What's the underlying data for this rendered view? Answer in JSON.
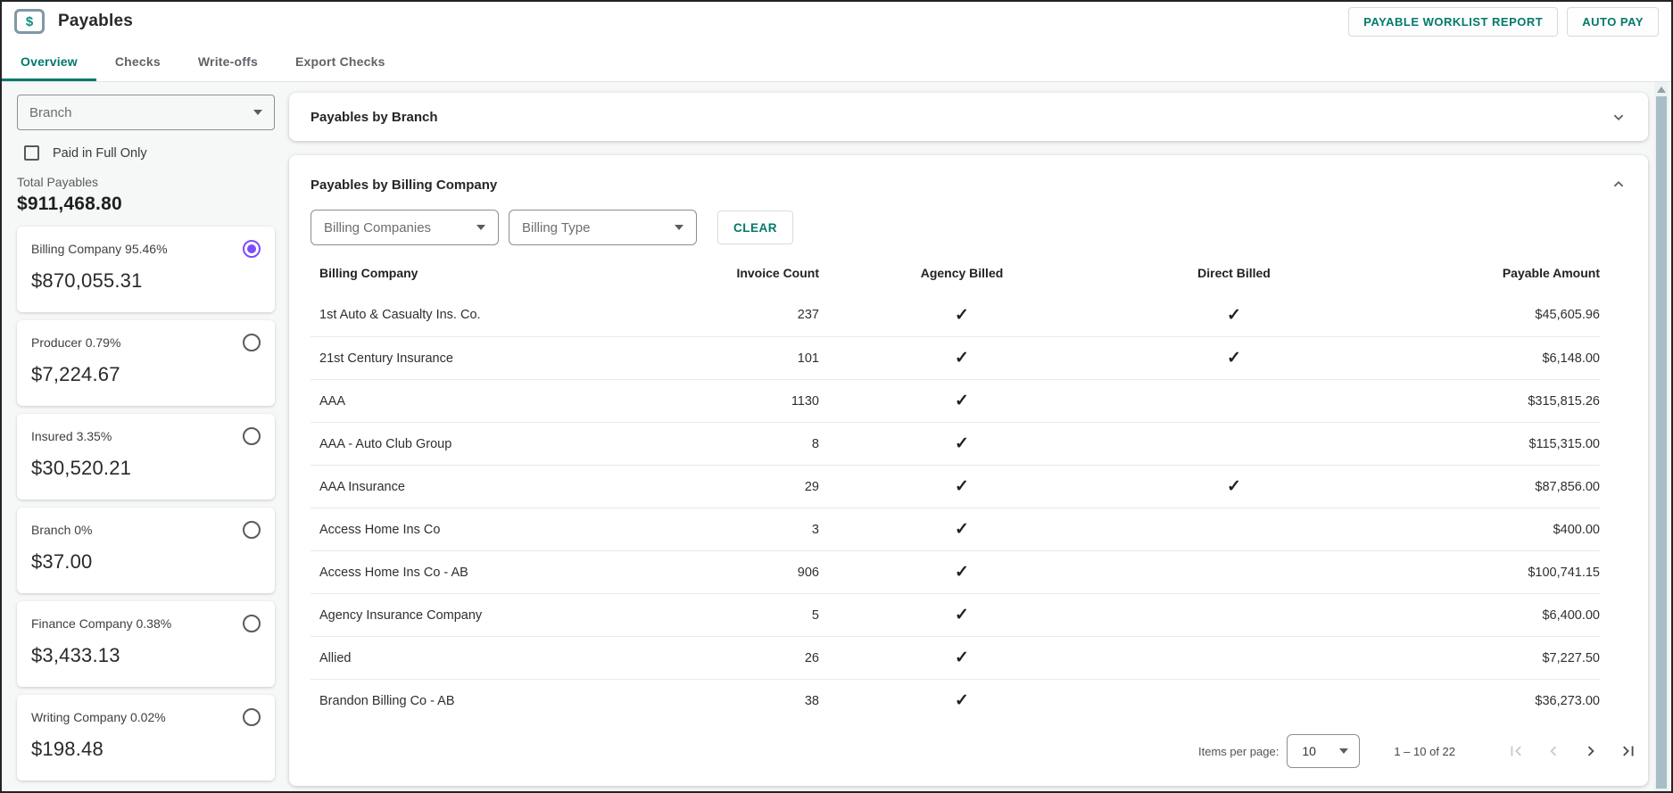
{
  "header": {
    "title": "Payables",
    "buttons": [
      {
        "label": "PAYABLE WORKLIST REPORT"
      },
      {
        "label": "AUTO PAY"
      }
    ]
  },
  "tabs": [
    {
      "label": "Overview",
      "active": true
    },
    {
      "label": "Checks",
      "active": false
    },
    {
      "label": "Write-offs",
      "active": false
    },
    {
      "label": "Export Checks",
      "active": false
    }
  ],
  "sidebar": {
    "branch_filter_placeholder": "Branch",
    "paid_in_full_label": "Paid in Full Only",
    "paid_in_full_checked": false,
    "total_label": "Total Payables",
    "total_amount": "$911,468.80",
    "categories": [
      {
        "label": "Billing Company 95.46%",
        "amount": "$870,055.31",
        "selected": true
      },
      {
        "label": "Producer 0.79%",
        "amount": "$7,224.67",
        "selected": false
      },
      {
        "label": "Insured 3.35%",
        "amount": "$30,520.21",
        "selected": false
      },
      {
        "label": "Branch 0%",
        "amount": "$37.00",
        "selected": false
      },
      {
        "label": "Finance Company 0.38%",
        "amount": "$3,433.13",
        "selected": false
      },
      {
        "label": "Writing Company 0.02%",
        "amount": "$198.48",
        "selected": false
      }
    ]
  },
  "main": {
    "branch_panel": {
      "title": "Payables by Branch",
      "collapsed": true
    },
    "billing_panel": {
      "title": "Payables by Billing Company",
      "collapsed": false,
      "filters": {
        "billing_companies_placeholder": "Billing Companies",
        "billing_type_placeholder": "Billing Type",
        "clear_label": "CLEAR"
      },
      "table": {
        "columns": [
          "Billing Company",
          "Invoice Count",
          "Agency Billed",
          "Direct Billed",
          "Payable Amount"
        ],
        "rows": [
          {
            "company": "1st Auto & Casualty Ins. Co.",
            "invoices": "237",
            "agency": true,
            "direct": true,
            "amount": "$45,605.96"
          },
          {
            "company": "21st Century Insurance",
            "invoices": "101",
            "agency": true,
            "direct": true,
            "amount": "$6,148.00"
          },
          {
            "company": "AAA",
            "invoices": "1130",
            "agency": true,
            "direct": false,
            "amount": "$315,815.26"
          },
          {
            "company": "AAA - Auto Club Group",
            "invoices": "8",
            "agency": true,
            "direct": false,
            "amount": "$115,315.00"
          },
          {
            "company": "AAA Insurance",
            "invoices": "29",
            "agency": true,
            "direct": true,
            "amount": "$87,856.00"
          },
          {
            "company": "Access Home Ins Co",
            "invoices": "3",
            "agency": true,
            "direct": false,
            "amount": "$400.00"
          },
          {
            "company": "Access Home Ins Co - AB",
            "invoices": "906",
            "agency": true,
            "direct": false,
            "amount": "$100,741.15"
          },
          {
            "company": "Agency Insurance Company",
            "invoices": "5",
            "agency": true,
            "direct": false,
            "amount": "$6,400.00"
          },
          {
            "company": "Allied",
            "invoices": "26",
            "agency": true,
            "direct": false,
            "amount": "$7,227.50"
          },
          {
            "company": "Brandon Billing Co - AB",
            "invoices": "38",
            "agency": true,
            "direct": false,
            "amount": "$36,273.00"
          }
        ]
      },
      "pagination": {
        "items_per_page_label": "Items per page:",
        "items_per_page_value": "10",
        "range_label": "1 – 10 of 22"
      }
    }
  },
  "glyphs": {
    "check": "✓",
    "currency": "$"
  },
  "colors": {
    "accent": "#00796b",
    "radio_selected": "#7c4dff",
    "scrollbar_thumb": "#a9bdc8"
  }
}
